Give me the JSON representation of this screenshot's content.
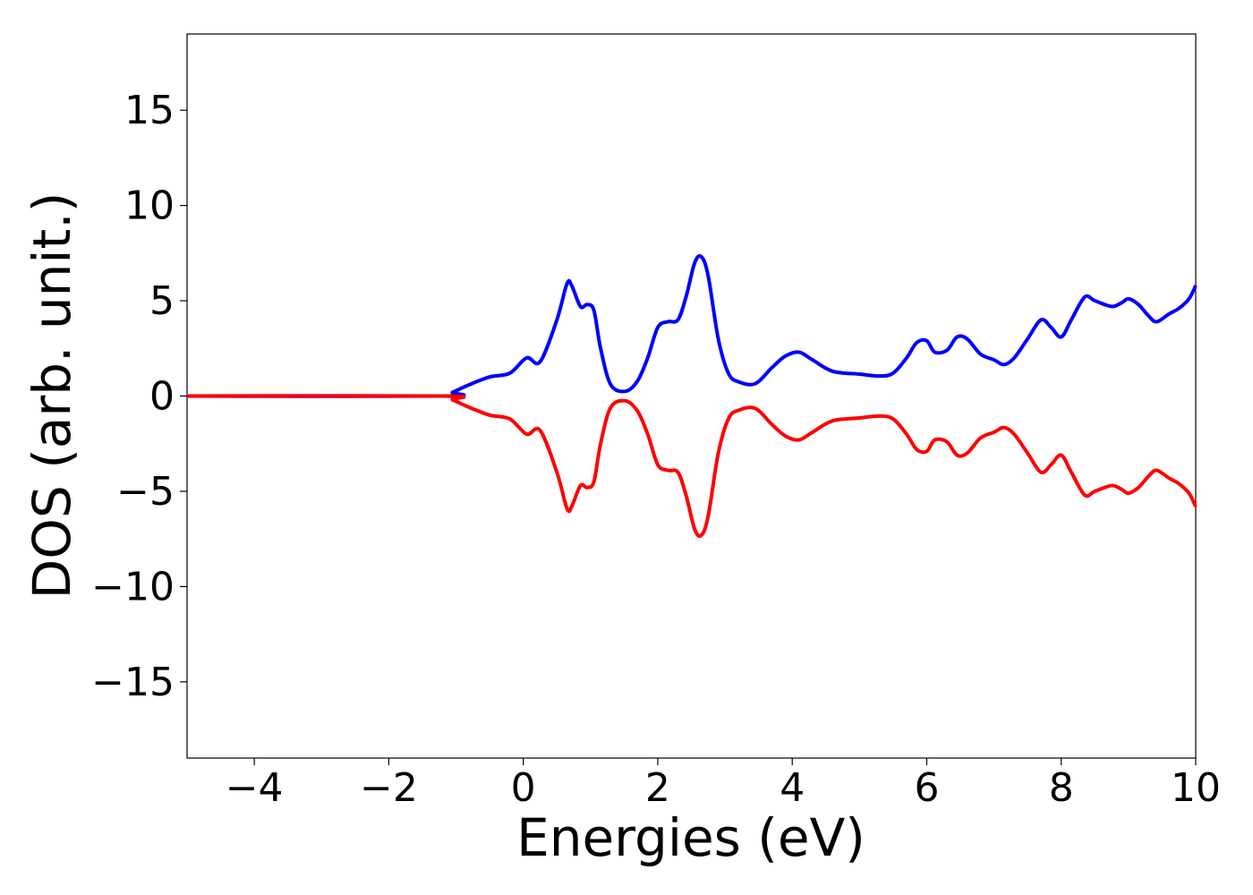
{
  "chart_data": {
    "type": "line",
    "title": "",
    "xlabel": "Energies (eV)",
    "ylabel": "DOS (arb. unit.)",
    "xlim": [
      -5,
      10
    ],
    "ylim": [
      -19,
      19
    ],
    "xticks": [
      -4,
      -2,
      0,
      2,
      4,
      6,
      8,
      10
    ],
    "xtick_labels": [
      "−4",
      "−2",
      "0",
      "2",
      "4",
      "6",
      "8",
      "10"
    ],
    "yticks": [
      -15,
      -10,
      -5,
      0,
      5,
      10,
      15
    ],
    "ytick_labels": [
      "−15",
      "−10",
      "−5",
      "0",
      "5",
      "10",
      "15"
    ],
    "grid": false,
    "legend": "none",
    "series": [
      {
        "color": "#0000ff",
        "x": [
          -5,
          -1.2,
          -1.05,
          -0.8,
          -0.5,
          -0.2,
          0.05,
          0.25,
          0.5,
          0.65,
          0.72,
          0.85,
          0.95,
          1.05,
          1.15,
          1.3,
          1.52,
          1.7,
          1.85,
          2.0,
          2.15,
          2.3,
          2.42,
          2.55,
          2.65,
          2.75,
          2.9,
          3.05,
          3.2,
          3.45,
          3.7,
          3.9,
          4.1,
          4.3,
          4.6,
          5.0,
          5.3,
          5.5,
          5.7,
          5.85,
          6.0,
          6.12,
          6.3,
          6.45,
          6.6,
          6.8,
          7.0,
          7.15,
          7.3,
          7.5,
          7.7,
          7.85,
          8.0,
          8.15,
          8.35,
          8.5,
          8.75,
          8.9,
          9.0,
          9.15,
          9.3,
          9.42,
          9.6,
          9.75,
          9.9,
          10.0
        ],
        "values": [
          0,
          0,
          0.2,
          0.6,
          1.0,
          1.2,
          2.0,
          1.8,
          4.0,
          5.9,
          5.8,
          4.7,
          4.8,
          4.5,
          2.5,
          0.6,
          0.25,
          0.8,
          2.0,
          3.6,
          3.9,
          4.0,
          5.2,
          7.0,
          7.3,
          6.3,
          3.0,
          1.2,
          0.75,
          0.65,
          1.5,
          2.1,
          2.3,
          1.9,
          1.3,
          1.15,
          1.05,
          1.2,
          2.0,
          2.8,
          2.9,
          2.3,
          2.4,
          3.1,
          3.0,
          2.2,
          1.9,
          1.65,
          2.0,
          3.0,
          4.0,
          3.6,
          3.1,
          4.0,
          5.2,
          5.0,
          4.7,
          4.9,
          5.1,
          4.8,
          4.2,
          3.9,
          4.3,
          4.6,
          5.1,
          5.8
        ]
      },
      {
        "color": "#ff0000",
        "x": [
          -5,
          -1.2,
          -1.05,
          -0.8,
          -0.5,
          -0.2,
          0.05,
          0.25,
          0.5,
          0.65,
          0.72,
          0.85,
          0.95,
          1.05,
          1.15,
          1.3,
          1.52,
          1.7,
          1.85,
          2.0,
          2.15,
          2.3,
          2.42,
          2.55,
          2.65,
          2.75,
          2.9,
          3.05,
          3.2,
          3.45,
          3.7,
          3.9,
          4.1,
          4.3,
          4.6,
          5.0,
          5.3,
          5.5,
          5.7,
          5.85,
          6.0,
          6.12,
          6.3,
          6.45,
          6.6,
          6.8,
          7.0,
          7.15,
          7.3,
          7.5,
          7.7,
          7.85,
          8.0,
          8.15,
          8.35,
          8.5,
          8.75,
          8.9,
          9.0,
          9.15,
          9.3,
          9.42,
          9.6,
          9.75,
          9.9,
          10.0
        ],
        "values": [
          0,
          0,
          -0.2,
          -0.6,
          -1.0,
          -1.2,
          -2.0,
          -1.8,
          -4.0,
          -5.9,
          -5.8,
          -4.7,
          -4.8,
          -4.5,
          -2.5,
          -0.6,
          -0.25,
          -0.8,
          -2.0,
          -3.6,
          -3.9,
          -4.0,
          -5.2,
          -7.0,
          -7.3,
          -6.3,
          -3.0,
          -1.2,
          -0.75,
          -0.65,
          -1.5,
          -2.1,
          -2.3,
          -1.9,
          -1.3,
          -1.15,
          -1.05,
          -1.2,
          -2.0,
          -2.8,
          -2.9,
          -2.3,
          -2.4,
          -3.1,
          -3.0,
          -2.2,
          -1.9,
          -1.65,
          -2.0,
          -3.0,
          -4.0,
          -3.6,
          -3.1,
          -4.0,
          -5.2,
          -5.0,
          -4.7,
          -4.9,
          -5.1,
          -4.8,
          -4.2,
          -3.9,
          -4.3,
          -4.6,
          -5.1,
          -5.8
        ]
      }
    ]
  }
}
